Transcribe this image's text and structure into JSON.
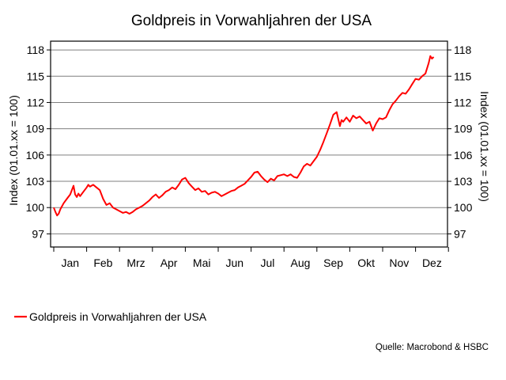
{
  "chart_data": {
    "type": "line",
    "title": "Goldpreis in Vorwahljahren der USA",
    "ylabel_left": "Index (01.01.xx = 100)",
    "ylabel_right": "Index (01.01.xx = 100)",
    "ylim": [
      95.5,
      119
    ],
    "yticks": [
      97,
      100,
      103,
      106,
      109,
      112,
      115,
      118
    ],
    "y_tick_labels": [
      "97",
      "100",
      "103",
      "106",
      "109",
      "112",
      "115",
      "118"
    ],
    "x_tick_labels": [
      "Jan",
      "Feb",
      "Mrz",
      "Apr",
      "Mai",
      "Jun",
      "Jul",
      "Aug",
      "Sep",
      "Okt",
      "Nov",
      "Dez"
    ],
    "grid": "horizontal",
    "legend_position": "bottom-left",
    "series": [
      {
        "name": "Goldpreis in Vorwahljahren der USA",
        "color": "#ff0000",
        "x_months": [
          0.0,
          0.05,
          0.1,
          0.15,
          0.2,
          0.3,
          0.4,
          0.5,
          0.6,
          0.65,
          0.7,
          0.75,
          0.8,
          0.9,
          1.0,
          1.05,
          1.1,
          1.2,
          1.3,
          1.4,
          1.5,
          1.6,
          1.7,
          1.8,
          1.9,
          2.0,
          2.05,
          2.1,
          2.2,
          2.3,
          2.4,
          2.5,
          2.6,
          2.7,
          2.8,
          2.9,
          3.0,
          3.1,
          3.2,
          3.3,
          3.4,
          3.5,
          3.6,
          3.7,
          3.8,
          3.9,
          4.0,
          4.1,
          4.2,
          4.3,
          4.4,
          4.5,
          4.6,
          4.7,
          4.8,
          4.9,
          5.0,
          5.1,
          5.2,
          5.3,
          5.4,
          5.5,
          5.6,
          5.7,
          5.8,
          5.9,
          6.0,
          6.1,
          6.2,
          6.3,
          6.4,
          6.5,
          6.6,
          6.7,
          6.8,
          6.9,
          7.0,
          7.1,
          7.2,
          7.3,
          7.4,
          7.5,
          7.6,
          7.7,
          7.8,
          7.9,
          8.0,
          8.1,
          8.2,
          8.3,
          8.4,
          8.5,
          8.6,
          8.7,
          8.75,
          8.8,
          8.9,
          9.0,
          9.1,
          9.2,
          9.3,
          9.4,
          9.5,
          9.6,
          9.7,
          9.8,
          9.9,
          10.0,
          10.1,
          10.2,
          10.3,
          10.4,
          10.5,
          10.6,
          10.7,
          10.8,
          10.9,
          11.0,
          11.1,
          11.2,
          11.3,
          11.4,
          11.45,
          11.5,
          11.55
        ],
        "values": [
          100.0,
          99.5,
          99.1,
          99.3,
          99.8,
          100.5,
          101.0,
          101.5,
          102.5,
          101.5,
          101.2,
          101.6,
          101.3,
          101.8,
          102.3,
          102.6,
          102.4,
          102.6,
          102.3,
          102.0,
          101.0,
          100.3,
          100.5,
          100.0,
          99.8,
          99.6,
          99.5,
          99.4,
          99.5,
          99.3,
          99.5,
          99.8,
          100.0,
          100.2,
          100.5,
          100.8,
          101.2,
          101.5,
          101.1,
          101.4,
          101.8,
          102.0,
          102.3,
          102.1,
          102.6,
          103.2,
          103.4,
          102.8,
          102.4,
          102.0,
          102.2,
          101.8,
          101.9,
          101.5,
          101.7,
          101.8,
          101.6,
          101.3,
          101.5,
          101.7,
          101.9,
          102.0,
          102.3,
          102.5,
          102.7,
          103.1,
          103.5,
          104.0,
          104.1,
          103.6,
          103.2,
          102.9,
          103.3,
          103.1,
          103.6,
          103.7,
          103.8,
          103.6,
          103.8,
          103.5,
          103.4,
          104.0,
          104.7,
          105.0,
          104.8,
          105.3,
          105.8,
          106.6,
          107.5,
          108.5,
          109.5,
          110.6,
          110.9,
          109.3,
          110.0,
          109.8,
          110.3,
          109.8,
          110.5,
          110.2,
          110.4,
          110.0,
          109.6,
          109.8,
          108.8,
          109.6,
          110.2,
          110.1,
          110.3,
          111.1,
          111.8,
          112.2,
          112.7,
          113.1,
          113.0,
          113.5,
          114.1,
          114.7,
          114.6,
          115.0,
          115.3,
          116.5,
          117.3,
          117.0,
          117.2
        ]
      }
    ]
  },
  "legend": {
    "label": "Goldpreis in Vorwahljahren der USA"
  },
  "source": "Quelle: Macrobond & HSBC"
}
